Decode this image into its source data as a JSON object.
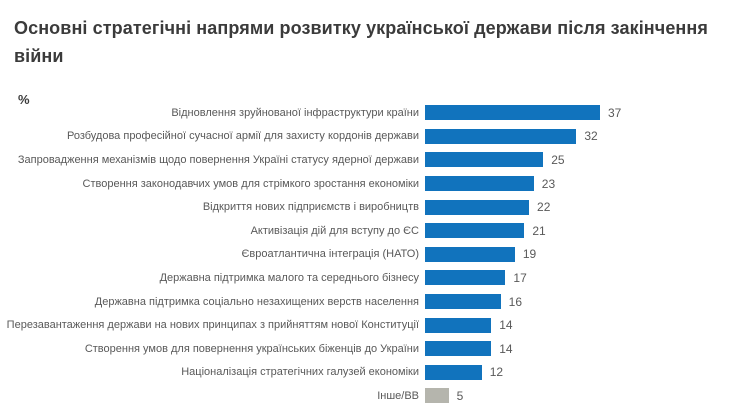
{
  "header": {
    "title": "Основні стратегічні напрями розвитку української держави після закінчення війни"
  },
  "chart": {
    "unit_label": "%",
    "bar_color": "#1173BD",
    "other_bar_color": "#B5B5AD",
    "label_color": "#595959"
  },
  "chart_data": {
    "type": "bar",
    "orientation": "horizontal",
    "title": "Основні стратегічні напрями розвитку української держави після закінчення війни",
    "xlabel": "%",
    "ylabel": "",
    "xlim": [
      0,
      40
    ],
    "grid": false,
    "legend": false,
    "data_labels": true,
    "categories": [
      "Відновлення зруйнованої інфраструктури країни",
      "Розбудова професійної сучасної армії для захисту кордонів держави",
      "Запровадження механізмів щодо повернення Україні статусу ядерної держави",
      "Створення законодавчих умов для стрімкого зростання економіки",
      "Відкриття нових підприємств і виробництв",
      "Активізація дій для вступу до ЄС",
      "Євроатлантична інтеграція (НАТО)",
      "Державна підтримка малого та середнього бізнесу",
      "Державна підтримка соціально незахищених верств населення",
      "Перезавантаження держави на нових принципах з прийняттям нової Конституції",
      "Створення умов для повернення українських біженців до України",
      "Націоналізація стратегічних галузей економіки",
      "Інше/ВВ"
    ],
    "values": [
      37,
      32,
      25,
      23,
      22,
      21,
      19,
      17,
      16,
      14,
      14,
      12,
      5
    ],
    "other_index": 12
  }
}
